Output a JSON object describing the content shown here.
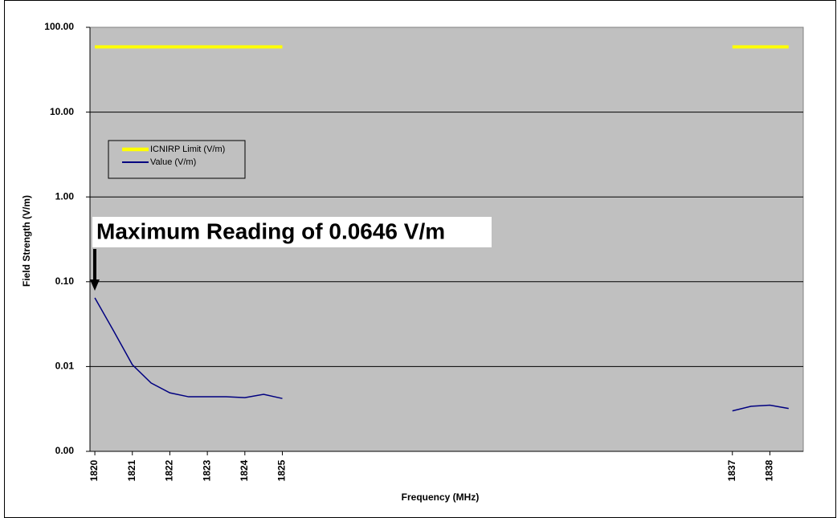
{
  "chart_data": {
    "type": "line",
    "x_label": "Frequency (MHz)",
    "y_label": "Field Strength (V/m)",
    "annotation": "Maximum Reading of 0.0646 V/m",
    "log_scale_y": true,
    "grid": true,
    "legend": "upper left",
    "x": [
      1820,
      1820.5,
      1821,
      1821.5,
      1822,
      1822.5,
      1823,
      1823.5,
      1824,
      1824.5,
      1825,
      1825.5,
      1826,
      1826.5,
      1827,
      1827.5,
      1828,
      1828.5,
      1829,
      1829.5,
      1830,
      1830.5,
      1831,
      1831.5,
      1832,
      1832.5,
      1833,
      1833.5,
      1834,
      1834.5,
      1835,
      1835.5,
      1836,
      1836.5,
      1837,
      1837.5,
      1838,
      1838.5
    ],
    "series": [
      {
        "name": "ICNIRP Limit (V/m)",
        "color": "#ffff00",
        "width": 4,
        "values": [
          58.7,
          58.7,
          58.7,
          58.7,
          58.7,
          58.7,
          58.7,
          58.7,
          58.7,
          58.7,
          58.7,
          null,
          null,
          null,
          null,
          null,
          null,
          null,
          null,
          null,
          null,
          null,
          null,
          null,
          null,
          null,
          null,
          null,
          null,
          null,
          null,
          null,
          null,
          null,
          58.7,
          58.7,
          58.7,
          58.7
        ]
      },
      {
        "name": "Value (V/m)",
        "color": "#000080",
        "width": 1.5,
        "values": [
          0.0646,
          0.0263,
          0.0105,
          0.0064,
          0.0049,
          0.0044,
          0.0044,
          0.0044,
          0.0043,
          0.0047,
          0.0042,
          null,
          null,
          null,
          null,
          null,
          null,
          null,
          null,
          null,
          null,
          null,
          null,
          null,
          null,
          null,
          null,
          null,
          null,
          null,
          null,
          null,
          null,
          null,
          0.003,
          0.0034,
          0.0035,
          0.0032
        ]
      }
    ],
    "xlim": [
      1819.87,
      1838.89
    ],
    "xticks": [
      1820,
      1821,
      1822,
      1823,
      1824,
      1825,
      1837,
      1838
    ],
    "ylim": [
      0.001,
      100
    ],
    "yticks": [
      {
        "value": 0.001,
        "label": "0.00"
      },
      {
        "value": 0.01,
        "label": "0.01"
      },
      {
        "value": 0.1,
        "label": "0.10"
      },
      {
        "value": 1,
        "label": "1.00"
      },
      {
        "value": 10,
        "label": "10.00"
      },
      {
        "value": 100,
        "label": "100.00"
      }
    ]
  }
}
